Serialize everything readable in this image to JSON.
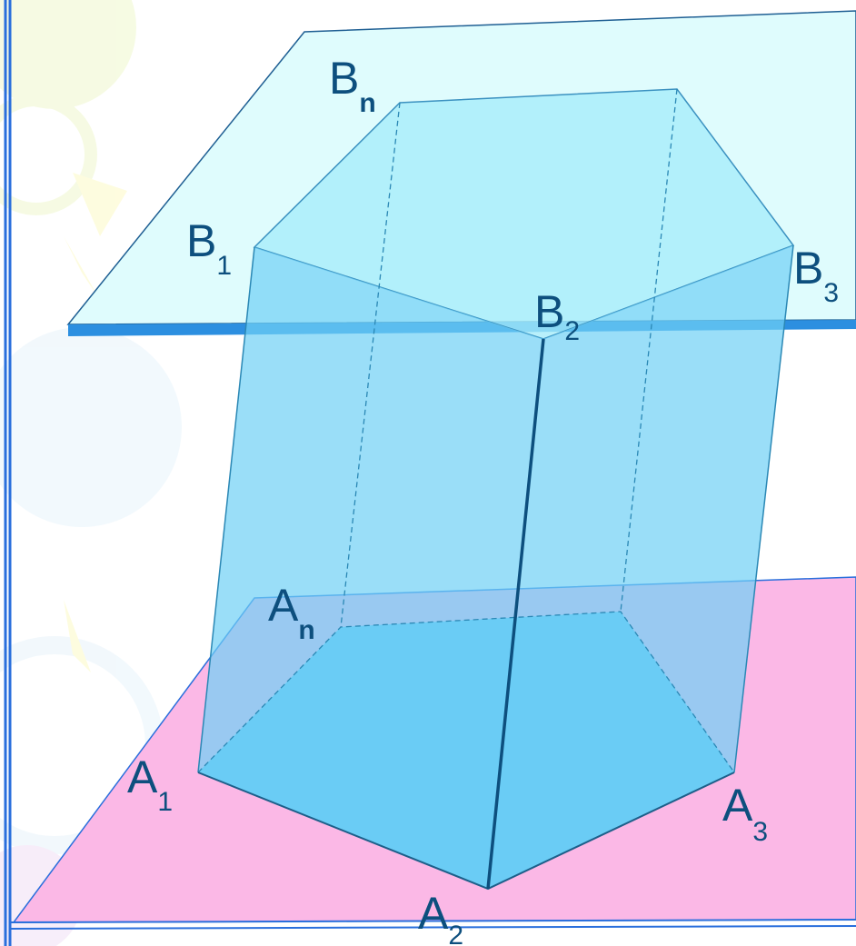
{
  "points": [
    {
      "letter": "B",
      "sub": "n"
    },
    {
      "letter": "B",
      "sub": "1"
    },
    {
      "letter": "B",
      "sub": "2"
    },
    {
      "letter": "B",
      "sub": "3"
    },
    {
      "letter": "A",
      "sub": "n"
    },
    {
      "letter": "A",
      "sub": "1"
    },
    {
      "letter": "A",
      "sub": "2"
    },
    {
      "letter": "A",
      "sub": "3"
    }
  ]
}
